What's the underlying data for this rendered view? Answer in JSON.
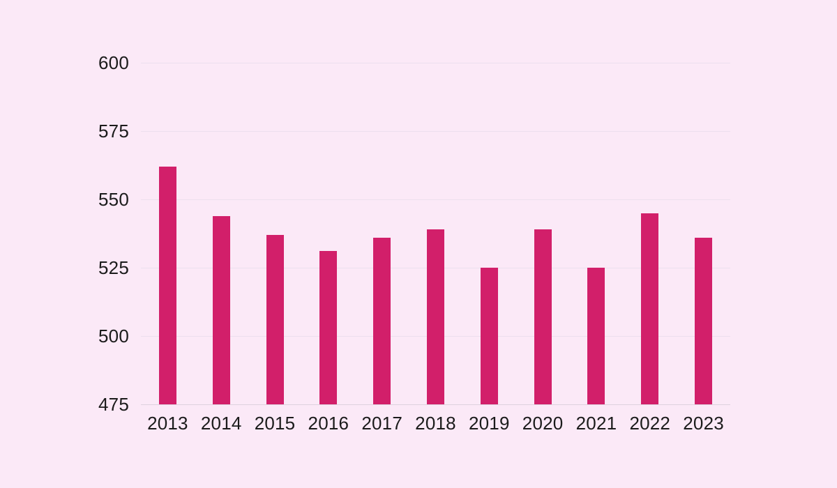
{
  "page": {
    "background_color": "#fbe9f7"
  },
  "chart_data": {
    "type": "bar",
    "title": "",
    "xlabel": "",
    "ylabel": "",
    "categories": [
      "2013",
      "2014",
      "2015",
      "2016",
      "2017",
      "2018",
      "2019",
      "2020",
      "2021",
      "2022",
      "2023"
    ],
    "values": [
      562,
      544,
      537,
      531,
      536,
      539,
      525,
      539,
      525,
      545,
      536
    ],
    "ylim": [
      475,
      600
    ],
    "yticks": [
      475,
      500,
      525,
      550,
      575,
      600
    ],
    "grid": true,
    "legend": false,
    "bar_color": "#d21f6a",
    "axis_text_color": "#1b1b1b",
    "gridline_color": "#ecdfee",
    "baseline_color": "#ddd1de"
  }
}
